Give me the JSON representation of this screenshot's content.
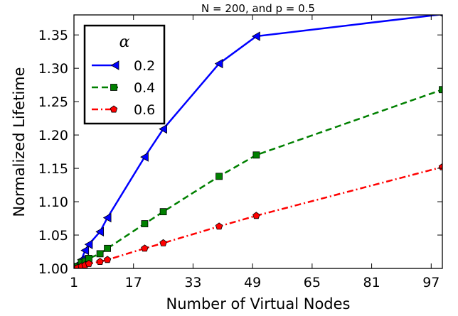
{
  "chart_data": {
    "type": "line",
    "title": "N = 200, and p = 0.5",
    "xlabel": "Number of Virtual Nodes",
    "ylabel": "Normalized Lifetime",
    "xlim": [
      1,
      100
    ],
    "ylim": [
      1.0,
      1.38
    ],
    "xticks": [
      1,
      17,
      33,
      49,
      65,
      81,
      97
    ],
    "yticks": [
      1.0,
      1.05,
      1.1,
      1.15,
      1.2,
      1.25,
      1.3,
      1.35
    ],
    "ytick_labels": [
      "1.00",
      "1.05",
      "1.10",
      "1.15",
      "1.20",
      "1.25",
      "1.30",
      "1.35"
    ],
    "grid": false,
    "legend": {
      "title": "α",
      "position": "top-left"
    },
    "series": [
      {
        "name": "0.2",
        "color": "#0000ff",
        "line_style": "solid",
        "marker": "triangle-left",
        "x": [
          1,
          2,
          3,
          4,
          5,
          8,
          10,
          20,
          25,
          40,
          50,
          100
        ],
        "y": [
          1.0,
          1.006,
          1.013,
          1.027,
          1.036,
          1.055,
          1.076,
          1.167,
          1.209,
          1.307,
          1.348,
          1.381
        ]
      },
      {
        "name": "0.4",
        "color": "#008000",
        "line_style": "dashed",
        "marker": "square",
        "x": [
          1,
          2,
          3,
          4,
          5,
          8,
          10,
          20,
          25,
          40,
          50,
          100
        ],
        "y": [
          1.0,
          1.003,
          1.009,
          1.011,
          1.015,
          1.022,
          1.03,
          1.067,
          1.085,
          1.138,
          1.17,
          1.268
        ]
      },
      {
        "name": "0.6",
        "color": "#ff0000",
        "line_style": "dashdot",
        "marker": "pentagon",
        "x": [
          1,
          2,
          3,
          4,
          5,
          8,
          10,
          20,
          25,
          40,
          50,
          100
        ],
        "y": [
          1.0,
          1.001,
          1.003,
          1.005,
          1.007,
          1.01,
          1.013,
          1.03,
          1.038,
          1.063,
          1.079,
          1.152
        ]
      }
    ]
  }
}
